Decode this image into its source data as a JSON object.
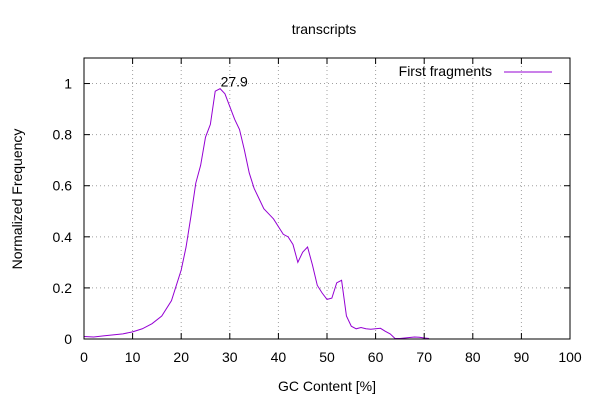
{
  "chart_data": {
    "type": "line",
    "title": "transcripts",
    "xlabel": "GC Content [%]",
    "ylabel": "Normalized Frequency",
    "xlim": [
      0,
      100
    ],
    "ylim": [
      0,
      1.1
    ],
    "xticks": [
      0,
      10,
      20,
      30,
      40,
      50,
      60,
      70,
      80,
      90,
      100
    ],
    "yticks": [
      0,
      0.2,
      0.4,
      0.6,
      0.8,
      1
    ],
    "grid": true,
    "legend_position": "top-right",
    "annotations": [
      {
        "text": "27.9",
        "x": 27.9,
        "y": 0.98
      }
    ],
    "series": [
      {
        "name": "First fragments",
        "color": "#9400d3",
        "x": [
          0,
          2,
          4,
          6,
          8,
          10,
          12,
          14,
          16,
          18,
          20,
          21,
          22,
          23,
          24,
          25,
          26,
          27,
          28,
          29,
          30,
          31,
          32,
          33,
          34,
          35,
          36,
          37,
          38,
          39,
          40,
          41,
          42,
          43,
          44,
          45,
          46,
          47,
          48,
          49,
          50,
          51,
          52,
          53,
          54,
          55,
          56,
          57,
          58,
          59,
          60,
          61,
          62,
          63,
          64,
          65,
          66,
          67,
          68,
          69,
          70,
          71
        ],
        "y": [
          0.01,
          0.008,
          0.012,
          0.016,
          0.02,
          0.028,
          0.04,
          0.06,
          0.09,
          0.15,
          0.27,
          0.36,
          0.48,
          0.61,
          0.68,
          0.79,
          0.84,
          0.97,
          0.98,
          0.96,
          0.91,
          0.86,
          0.82,
          0.74,
          0.65,
          0.59,
          0.55,
          0.51,
          0.49,
          0.47,
          0.44,
          0.41,
          0.4,
          0.37,
          0.3,
          0.34,
          0.36,
          0.29,
          0.21,
          0.18,
          0.155,
          0.16,
          0.22,
          0.23,
          0.09,
          0.05,
          0.04,
          0.045,
          0.04,
          0.038,
          0.04,
          0.042,
          0.03,
          0.02,
          0.002,
          0.002,
          0.004,
          0.006,
          0.008,
          0.007,
          0.004,
          0.002
        ]
      }
    ]
  }
}
